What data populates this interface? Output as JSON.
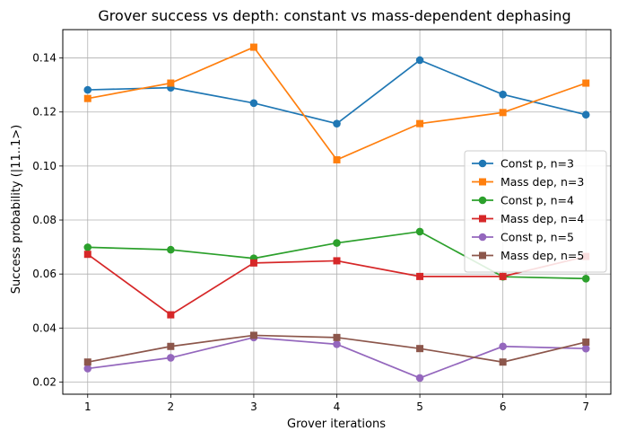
{
  "chart_data": {
    "type": "line",
    "title": "Grover success vs depth: constant vs mass-dependent dephasing",
    "xlabel": "Grover iterations",
    "ylabel": "Success probability (|11..1>)",
    "x": [
      1,
      2,
      3,
      4,
      5,
      6,
      7
    ],
    "xlim": [
      0.7,
      7.3
    ],
    "ylim": [
      0.0155,
      0.1505
    ],
    "xticks": [
      "1",
      "2",
      "3",
      "4",
      "5",
      "6",
      "7"
    ],
    "yticks": [
      "0.02",
      "0.04",
      "0.06",
      "0.08",
      "0.10",
      "0.12",
      "0.14"
    ],
    "grid": true,
    "legend_position": "center-right",
    "series": [
      {
        "name": "Const p, n=3",
        "color": "#1f77b4",
        "marker": "circle",
        "values": [
          0.1282,
          0.129,
          0.1233,
          0.1157,
          0.1392,
          0.1265,
          0.119
        ]
      },
      {
        "name": "Mass dep, n=3",
        "color": "#ff7f0e",
        "marker": "square",
        "values": [
          0.125,
          0.1307,
          0.144,
          0.1023,
          0.1157,
          0.1198,
          0.1307
        ]
      },
      {
        "name": "Const p, n=4",
        "color": "#2ca02c",
        "marker": "circle",
        "values": [
          0.0699,
          0.069,
          0.0658,
          0.0715,
          0.0757,
          0.059,
          0.0583
        ]
      },
      {
        "name": "Mass dep, n=4",
        "color": "#d62728",
        "marker": "square",
        "values": [
          0.0673,
          0.0449,
          0.0641,
          0.0649,
          0.0591,
          0.0591,
          0.0665
        ]
      },
      {
        "name": "Const p, n=5",
        "color": "#9467bd",
        "marker": "circle",
        "values": [
          0.025,
          0.029,
          0.0365,
          0.034,
          0.0215,
          0.0332,
          0.0324
        ]
      },
      {
        "name": "Mass dep, n=5",
        "color": "#8c564b",
        "marker": "square",
        "values": [
          0.0274,
          0.0332,
          0.0373,
          0.0365,
          0.0324,
          0.0274,
          0.0348
        ]
      }
    ]
  }
}
